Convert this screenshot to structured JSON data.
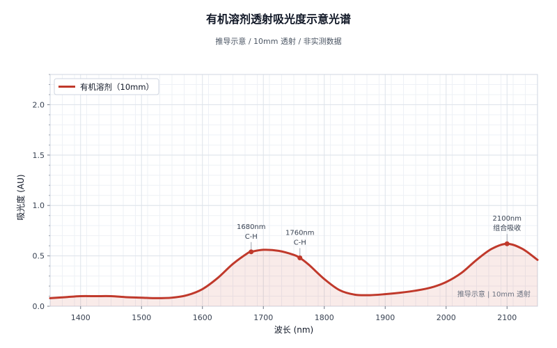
{
  "chart_data": {
    "type": "line",
    "title": "有机溶剂透射吸光度示意光谱",
    "subtitle": "推导示意 / 10mm 透射 / 非实测数据",
    "xlabel": "波长 (nm)",
    "ylabel": "吸光度 (AU)",
    "xlim": [
      1350,
      2150
    ],
    "ylim": [
      0,
      2.3
    ],
    "xticks": [
      1400,
      1500,
      1600,
      1700,
      1800,
      1900,
      2000,
      2100
    ],
    "yticks": [
      0.0,
      0.5,
      1.0,
      1.5,
      2.0
    ],
    "xtick_labels": [
      "1400",
      "1500",
      "1600",
      "1700",
      "1800",
      "1900",
      "2000",
      "2100"
    ],
    "ytick_labels": [
      "0.0",
      "0.5",
      "1.0",
      "1.5",
      "2.0"
    ],
    "grid": true,
    "legend_position": "top-left",
    "series": [
      {
        "name": "有机溶剂（10mm）",
        "color": "#c0392b",
        "x": [
          1350,
          1375,
          1400,
          1425,
          1450,
          1475,
          1500,
          1525,
          1550,
          1575,
          1600,
          1625,
          1650,
          1675,
          1680,
          1700,
          1725,
          1750,
          1760,
          1775,
          1800,
          1825,
          1850,
          1875,
          1900,
          1925,
          1950,
          1975,
          2000,
          2025,
          2050,
          2075,
          2100,
          2125,
          2150
        ],
        "y": [
          0.08,
          0.09,
          0.1,
          0.1,
          0.1,
          0.09,
          0.085,
          0.08,
          0.085,
          0.11,
          0.17,
          0.28,
          0.42,
          0.53,
          0.54,
          0.56,
          0.55,
          0.51,
          0.48,
          0.41,
          0.27,
          0.16,
          0.115,
          0.11,
          0.12,
          0.135,
          0.155,
          0.185,
          0.24,
          0.33,
          0.46,
          0.57,
          0.62,
          0.57,
          0.46
        ]
      }
    ],
    "markers": [
      {
        "x": 1680,
        "y": 0.54,
        "label": "1680nm",
        "sublabel": "C-H"
      },
      {
        "x": 1760,
        "y": 0.48,
        "label": "1760nm",
        "sublabel": "C-H"
      },
      {
        "x": 2100,
        "y": 0.62,
        "label": "2100nm",
        "sublabel": "组合吸收"
      }
    ],
    "watermark": "推导示意 | 10mm 透射"
  }
}
